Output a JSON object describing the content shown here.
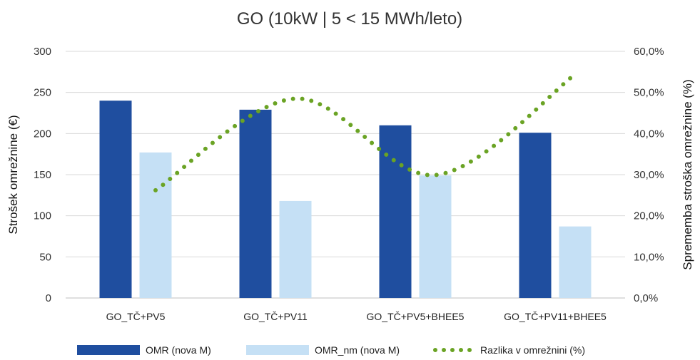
{
  "chart_data": {
    "type": "bar",
    "title": "GO (10kW | 5 < 15 MWh/leto)",
    "ylabel": "Strošek omrežnine (€)",
    "y2label": "Sprememba stroška omrežnine (%)",
    "ylim": [
      0,
      300
    ],
    "y2lim": [
      0,
      60
    ],
    "yticks": [
      "0",
      "50",
      "100",
      "150",
      "200",
      "250",
      "300"
    ],
    "y2ticks": [
      "0,0%",
      "10,0%",
      "20,0%",
      "30,0%",
      "40,0%",
      "50,0%",
      "60,0%"
    ],
    "categories": [
      "GO_TČ+PV5",
      "GO_TČ+PV11",
      "GO_TČ+PV5+BHEE5",
      "GO_TČ+PV11+BHEE5"
    ],
    "series": [
      {
        "name": "OMR (nova M)",
        "type": "bar",
        "axis": "left",
        "color": "#1f4e9f",
        "values": [
          240,
          229,
          210,
          201
        ]
      },
      {
        "name": "OMR_nm (nova M)",
        "type": "bar",
        "axis": "left",
        "color": "#c5e0f5",
        "values": [
          177,
          118,
          149,
          87
        ]
      },
      {
        "name": "Razlika v omrežnini (%)",
        "type": "line",
        "style": "dotted",
        "axis": "right",
        "color": "#6aa324",
        "values": [
          26.2,
          48.5,
          29.9,
          54.4
        ]
      }
    ],
    "grid": true,
    "legend": "bottom"
  }
}
